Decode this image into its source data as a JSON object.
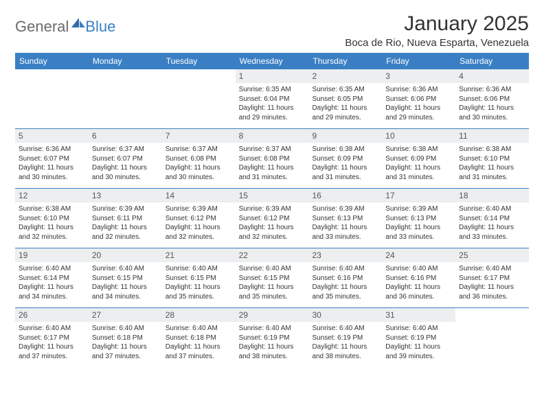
{
  "brand": {
    "general": "General",
    "blue": "Blue"
  },
  "title": "January 2025",
  "location": "Boca de Rio, Nueva Esparta, Venezuela",
  "colors": {
    "header_bar": "#3a7fc4",
    "daynum_bg": "#eceeef",
    "text": "#333333",
    "logo_gray": "#6b6b6b",
    "logo_blue": "#3a7fc4"
  },
  "weekdays": [
    "Sunday",
    "Monday",
    "Tuesday",
    "Wednesday",
    "Thursday",
    "Friday",
    "Saturday"
  ],
  "weeks": [
    [
      null,
      null,
      null,
      {
        "n": "1",
        "sr": "Sunrise: 6:35 AM",
        "ss": "Sunset: 6:04 PM",
        "d1": "Daylight: 11 hours",
        "d2": "and 29 minutes."
      },
      {
        "n": "2",
        "sr": "Sunrise: 6:35 AM",
        "ss": "Sunset: 6:05 PM",
        "d1": "Daylight: 11 hours",
        "d2": "and 29 minutes."
      },
      {
        "n": "3",
        "sr": "Sunrise: 6:36 AM",
        "ss": "Sunset: 6:06 PM",
        "d1": "Daylight: 11 hours",
        "d2": "and 29 minutes."
      },
      {
        "n": "4",
        "sr": "Sunrise: 6:36 AM",
        "ss": "Sunset: 6:06 PM",
        "d1": "Daylight: 11 hours",
        "d2": "and 30 minutes."
      }
    ],
    [
      {
        "n": "5",
        "sr": "Sunrise: 6:36 AM",
        "ss": "Sunset: 6:07 PM",
        "d1": "Daylight: 11 hours",
        "d2": "and 30 minutes."
      },
      {
        "n": "6",
        "sr": "Sunrise: 6:37 AM",
        "ss": "Sunset: 6:07 PM",
        "d1": "Daylight: 11 hours",
        "d2": "and 30 minutes."
      },
      {
        "n": "7",
        "sr": "Sunrise: 6:37 AM",
        "ss": "Sunset: 6:08 PM",
        "d1": "Daylight: 11 hours",
        "d2": "and 30 minutes."
      },
      {
        "n": "8",
        "sr": "Sunrise: 6:37 AM",
        "ss": "Sunset: 6:08 PM",
        "d1": "Daylight: 11 hours",
        "d2": "and 31 minutes."
      },
      {
        "n": "9",
        "sr": "Sunrise: 6:38 AM",
        "ss": "Sunset: 6:09 PM",
        "d1": "Daylight: 11 hours",
        "d2": "and 31 minutes."
      },
      {
        "n": "10",
        "sr": "Sunrise: 6:38 AM",
        "ss": "Sunset: 6:09 PM",
        "d1": "Daylight: 11 hours",
        "d2": "and 31 minutes."
      },
      {
        "n": "11",
        "sr": "Sunrise: 6:38 AM",
        "ss": "Sunset: 6:10 PM",
        "d1": "Daylight: 11 hours",
        "d2": "and 31 minutes."
      }
    ],
    [
      {
        "n": "12",
        "sr": "Sunrise: 6:38 AM",
        "ss": "Sunset: 6:10 PM",
        "d1": "Daylight: 11 hours",
        "d2": "and 32 minutes."
      },
      {
        "n": "13",
        "sr": "Sunrise: 6:39 AM",
        "ss": "Sunset: 6:11 PM",
        "d1": "Daylight: 11 hours",
        "d2": "and 32 minutes."
      },
      {
        "n": "14",
        "sr": "Sunrise: 6:39 AM",
        "ss": "Sunset: 6:12 PM",
        "d1": "Daylight: 11 hours",
        "d2": "and 32 minutes."
      },
      {
        "n": "15",
        "sr": "Sunrise: 6:39 AM",
        "ss": "Sunset: 6:12 PM",
        "d1": "Daylight: 11 hours",
        "d2": "and 32 minutes."
      },
      {
        "n": "16",
        "sr": "Sunrise: 6:39 AM",
        "ss": "Sunset: 6:13 PM",
        "d1": "Daylight: 11 hours",
        "d2": "and 33 minutes."
      },
      {
        "n": "17",
        "sr": "Sunrise: 6:39 AM",
        "ss": "Sunset: 6:13 PM",
        "d1": "Daylight: 11 hours",
        "d2": "and 33 minutes."
      },
      {
        "n": "18",
        "sr": "Sunrise: 6:40 AM",
        "ss": "Sunset: 6:14 PM",
        "d1": "Daylight: 11 hours",
        "d2": "and 33 minutes."
      }
    ],
    [
      {
        "n": "19",
        "sr": "Sunrise: 6:40 AM",
        "ss": "Sunset: 6:14 PM",
        "d1": "Daylight: 11 hours",
        "d2": "and 34 minutes."
      },
      {
        "n": "20",
        "sr": "Sunrise: 6:40 AM",
        "ss": "Sunset: 6:15 PM",
        "d1": "Daylight: 11 hours",
        "d2": "and 34 minutes."
      },
      {
        "n": "21",
        "sr": "Sunrise: 6:40 AM",
        "ss": "Sunset: 6:15 PM",
        "d1": "Daylight: 11 hours",
        "d2": "and 35 minutes."
      },
      {
        "n": "22",
        "sr": "Sunrise: 6:40 AM",
        "ss": "Sunset: 6:15 PM",
        "d1": "Daylight: 11 hours",
        "d2": "and 35 minutes."
      },
      {
        "n": "23",
        "sr": "Sunrise: 6:40 AM",
        "ss": "Sunset: 6:16 PM",
        "d1": "Daylight: 11 hours",
        "d2": "and 35 minutes."
      },
      {
        "n": "24",
        "sr": "Sunrise: 6:40 AM",
        "ss": "Sunset: 6:16 PM",
        "d1": "Daylight: 11 hours",
        "d2": "and 36 minutes."
      },
      {
        "n": "25",
        "sr": "Sunrise: 6:40 AM",
        "ss": "Sunset: 6:17 PM",
        "d1": "Daylight: 11 hours",
        "d2": "and 36 minutes."
      }
    ],
    [
      {
        "n": "26",
        "sr": "Sunrise: 6:40 AM",
        "ss": "Sunset: 6:17 PM",
        "d1": "Daylight: 11 hours",
        "d2": "and 37 minutes."
      },
      {
        "n": "27",
        "sr": "Sunrise: 6:40 AM",
        "ss": "Sunset: 6:18 PM",
        "d1": "Daylight: 11 hours",
        "d2": "and 37 minutes."
      },
      {
        "n": "28",
        "sr": "Sunrise: 6:40 AM",
        "ss": "Sunset: 6:18 PM",
        "d1": "Daylight: 11 hours",
        "d2": "and 37 minutes."
      },
      {
        "n": "29",
        "sr": "Sunrise: 6:40 AM",
        "ss": "Sunset: 6:19 PM",
        "d1": "Daylight: 11 hours",
        "d2": "and 38 minutes."
      },
      {
        "n": "30",
        "sr": "Sunrise: 6:40 AM",
        "ss": "Sunset: 6:19 PM",
        "d1": "Daylight: 11 hours",
        "d2": "and 38 minutes."
      },
      {
        "n": "31",
        "sr": "Sunrise: 6:40 AM",
        "ss": "Sunset: 6:19 PM",
        "d1": "Daylight: 11 hours",
        "d2": "and 39 minutes."
      },
      null
    ]
  ]
}
